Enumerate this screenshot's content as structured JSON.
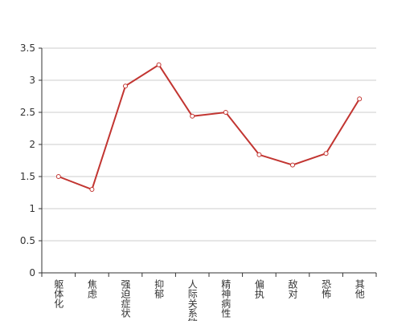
{
  "chart_data": {
    "type": "line",
    "categories": [
      "躯体化",
      "焦虑",
      "强迫症状",
      "抑郁",
      "人际关系敏感",
      "精神病性",
      "偏执",
      "敌对",
      "恐怖",
      "其他"
    ],
    "series": [
      {
        "color": "#c23531",
        "values": [
          1.5,
          1.3,
          2.91,
          3.24,
          2.44,
          2.5,
          1.84,
          1.68,
          1.86,
          2.71
        ]
      }
    ],
    "ylim": [
      0,
      3.5
    ],
    "yticks": [
      0,
      0.5,
      1,
      1.5,
      2,
      2.5,
      3,
      3.5
    ],
    "grid": true
  }
}
